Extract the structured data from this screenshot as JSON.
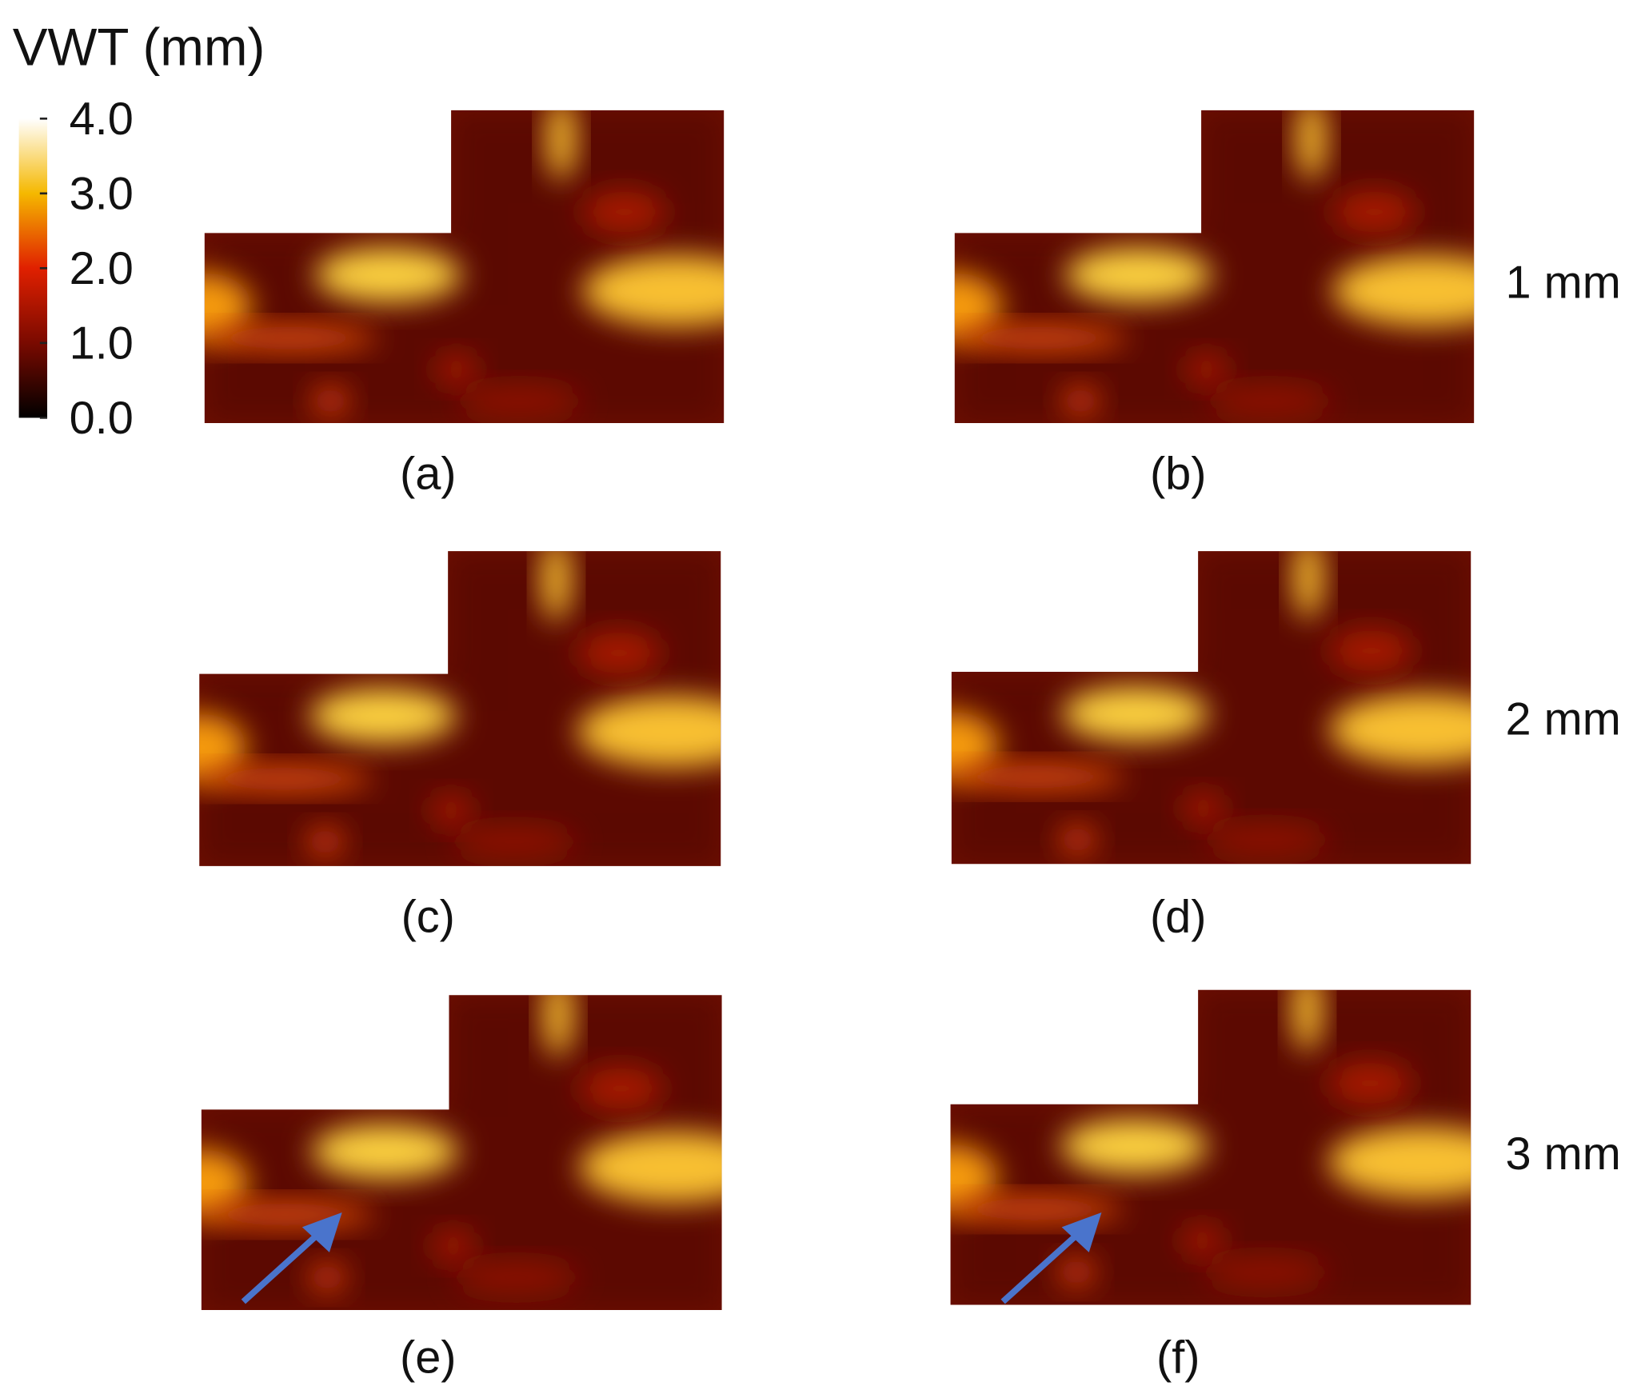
{
  "colorbar": {
    "title": "VWT (mm)",
    "range": [
      0,
      4
    ],
    "ticks": [
      {
        "value": 0,
        "label": "0.0"
      },
      {
        "value": 1,
        "label": "1.0"
      },
      {
        "value": 2,
        "label": "2.0"
      },
      {
        "value": 3,
        "label": "3.0"
      },
      {
        "value": 4,
        "label": "4.0"
      }
    ]
  },
  "panels": [
    "(a)",
    "(b)",
    "(c)",
    "(d)",
    "(e)",
    "(f)"
  ],
  "rows": [
    "1 mm",
    "2 mm",
    "3 mm"
  ]
}
